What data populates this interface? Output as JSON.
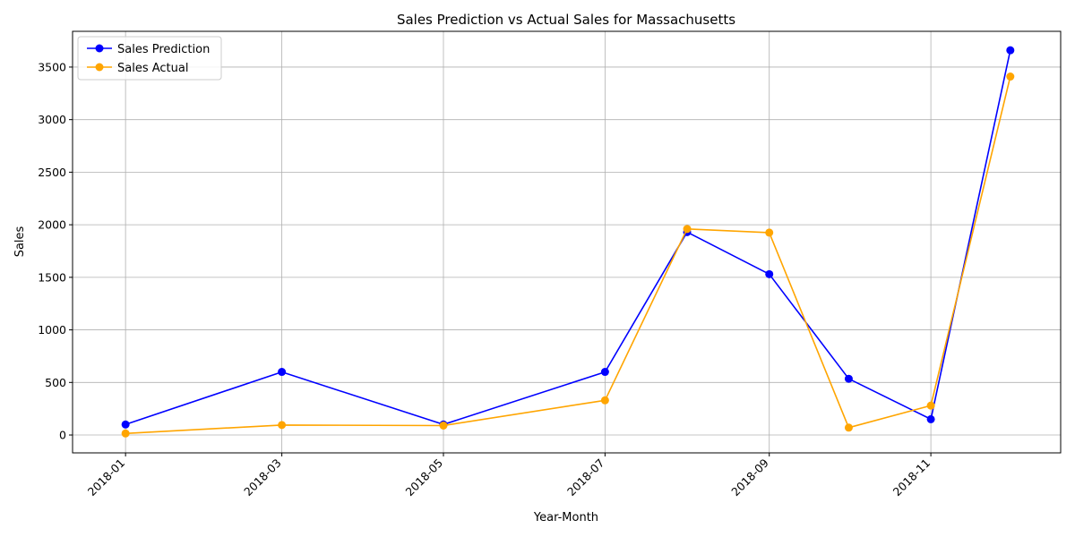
{
  "chart_data": {
    "type": "line",
    "title": "Sales Prediction vs Actual Sales for Massachusetts",
    "xlabel": "Year-Month",
    "ylabel": "Sales",
    "x": [
      "2018-01-01",
      "2018-03-01",
      "2018-05-01",
      "2018-07-01",
      "2018-08-01",
      "2018-09-01",
      "2018-10-01",
      "2018-11-01",
      "2018-12-01"
    ],
    "x_ticks": [
      "2018-01",
      "2018-03",
      "2018-05",
      "2018-07",
      "2018-09",
      "2018-11"
    ],
    "xlim": [
      "2017-12-12",
      "2018-12-20"
    ],
    "ylim": [
      -170,
      3840
    ],
    "y_ticks": [
      0,
      500,
      1000,
      1500,
      2000,
      2500,
      3000,
      3500
    ],
    "grid": true,
    "legend_position": "top-left",
    "series": [
      {
        "name": "Sales Prediction",
        "color": "#0000ff",
        "marker": "circle",
        "values": [
          100,
          600,
          100,
          600,
          1930,
          1530,
          535,
          150,
          3660
        ]
      },
      {
        "name": "Sales Actual",
        "color": "#ffa500",
        "marker": "circle",
        "values": [
          15,
          95,
          90,
          330,
          1960,
          1925,
          70,
          280,
          3410
        ]
      }
    ]
  }
}
